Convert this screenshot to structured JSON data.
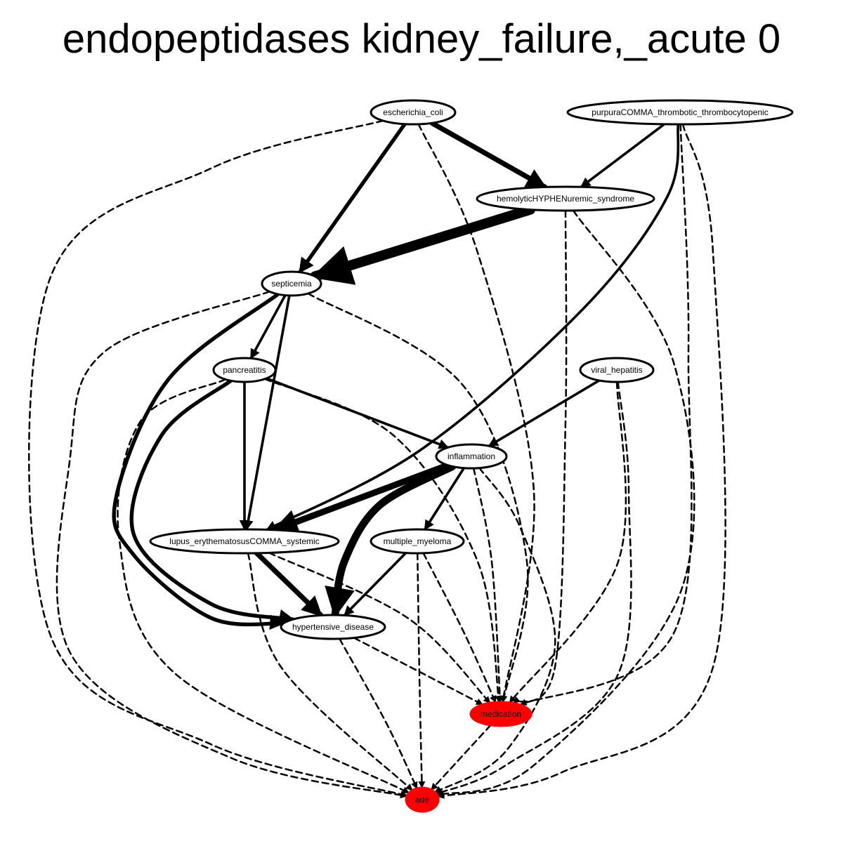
{
  "title": "endopeptidases kidney_failure,_acute 0",
  "colors": {
    "edge": "#000000",
    "node_fill": "#ffffff",
    "highlight_fill": "#ff0000",
    "text": "#000000"
  },
  "nodes": [
    {
      "id": "escherichia_coli",
      "label": "escherichia_coli",
      "highlight": false
    },
    {
      "id": "purpura",
      "label": "purpuraCOMMA_thrombotic_thrombocytopenic",
      "highlight": false
    },
    {
      "id": "hus",
      "label": "hemolyticHYPHENuremic_syndrome",
      "highlight": false
    },
    {
      "id": "septicemia",
      "label": "septicemia",
      "highlight": false
    },
    {
      "id": "pancreatitis",
      "label": "pancreatitis",
      "highlight": false
    },
    {
      "id": "viral_hepatitis",
      "label": "viral_hepatitis",
      "highlight": false
    },
    {
      "id": "inflammation",
      "label": "inflammation",
      "highlight": false
    },
    {
      "id": "lupus",
      "label": "lupus_erythematosusCOMMA_systemic",
      "highlight": false
    },
    {
      "id": "myeloma",
      "label": "multiple_myeloma",
      "highlight": false
    },
    {
      "id": "hypertensive",
      "label": "hypertensive_disease",
      "highlight": false
    },
    {
      "id": "medication",
      "label": "medication",
      "highlight": true
    },
    {
      "id": "ade",
      "label": "ade",
      "highlight": true
    }
  ],
  "edges": [
    {
      "from": "escherichia_coli",
      "to": "hus",
      "style": "solid",
      "weight": 4
    },
    {
      "from": "escherichia_coli",
      "to": "septicemia",
      "style": "solid",
      "weight": 3
    },
    {
      "from": "escherichia_coli",
      "to": "medication",
      "style": "dashed",
      "weight": 1
    },
    {
      "from": "escherichia_coli",
      "to": "ade",
      "style": "dashed",
      "weight": 1
    },
    {
      "from": "purpura",
      "to": "hus",
      "style": "solid",
      "weight": 2
    },
    {
      "from": "purpura",
      "to": "lupus",
      "style": "solid",
      "weight": 2
    },
    {
      "from": "purpura",
      "to": "medication",
      "style": "dashed",
      "weight": 1
    },
    {
      "from": "purpura",
      "to": "ade",
      "style": "dashed",
      "weight": 1
    },
    {
      "from": "hus",
      "to": "septicemia",
      "style": "solid",
      "weight": 8
    },
    {
      "from": "hus",
      "to": "medication",
      "style": "dashed",
      "weight": 1
    },
    {
      "from": "hus",
      "to": "ade",
      "style": "dashed",
      "weight": 1
    },
    {
      "from": "septicemia",
      "to": "pancreatitis",
      "style": "solid",
      "weight": 2
    },
    {
      "from": "septicemia",
      "to": "lupus",
      "style": "solid",
      "weight": 2
    },
    {
      "from": "septicemia",
      "to": "hypertensive",
      "style": "solid",
      "weight": 3
    },
    {
      "from": "septicemia",
      "to": "medication",
      "style": "dashed",
      "weight": 1
    },
    {
      "from": "septicemia",
      "to": "ade",
      "style": "dashed",
      "weight": 1
    },
    {
      "from": "pancreatitis",
      "to": "lupus",
      "style": "solid",
      "weight": 2
    },
    {
      "from": "pancreatitis",
      "to": "inflammation",
      "style": "solid",
      "weight": 2
    },
    {
      "from": "pancreatitis",
      "to": "hypertensive",
      "style": "solid",
      "weight": 3
    },
    {
      "from": "pancreatitis",
      "to": "medication",
      "style": "dashed",
      "weight": 1
    },
    {
      "from": "pancreatitis",
      "to": "ade",
      "style": "dashed",
      "weight": 1
    },
    {
      "from": "viral_hepatitis",
      "to": "inflammation",
      "style": "solid",
      "weight": 2
    },
    {
      "from": "viral_hepatitis",
      "to": "medication",
      "style": "dashed",
      "weight": 1
    },
    {
      "from": "viral_hepatitis",
      "to": "ade",
      "style": "dashed",
      "weight": 1
    },
    {
      "from": "inflammation",
      "to": "lupus",
      "style": "solid",
      "weight": 5
    },
    {
      "from": "inflammation",
      "to": "myeloma",
      "style": "solid",
      "weight": 2
    },
    {
      "from": "inflammation",
      "to": "hypertensive",
      "style": "solid",
      "weight": 6
    },
    {
      "from": "inflammation",
      "to": "medication",
      "style": "dashed",
      "weight": 1
    },
    {
      "from": "inflammation",
      "to": "ade",
      "style": "dashed",
      "weight": 1
    },
    {
      "from": "lupus",
      "to": "hypertensive",
      "style": "solid",
      "weight": 4
    },
    {
      "from": "lupus",
      "to": "medication",
      "style": "dashed",
      "weight": 1
    },
    {
      "from": "lupus",
      "to": "ade",
      "style": "dashed",
      "weight": 1
    },
    {
      "from": "myeloma",
      "to": "hypertensive",
      "style": "solid",
      "weight": 2
    },
    {
      "from": "myeloma",
      "to": "medication",
      "style": "dashed",
      "weight": 1
    },
    {
      "from": "myeloma",
      "to": "ade",
      "style": "dashed",
      "weight": 1
    },
    {
      "from": "hypertensive",
      "to": "medication",
      "style": "dashed",
      "weight": 1
    },
    {
      "from": "hypertensive",
      "to": "ade",
      "style": "dashed",
      "weight": 1
    },
    {
      "from": "medication",
      "to": "ade",
      "style": "dashed",
      "weight": 1
    }
  ]
}
